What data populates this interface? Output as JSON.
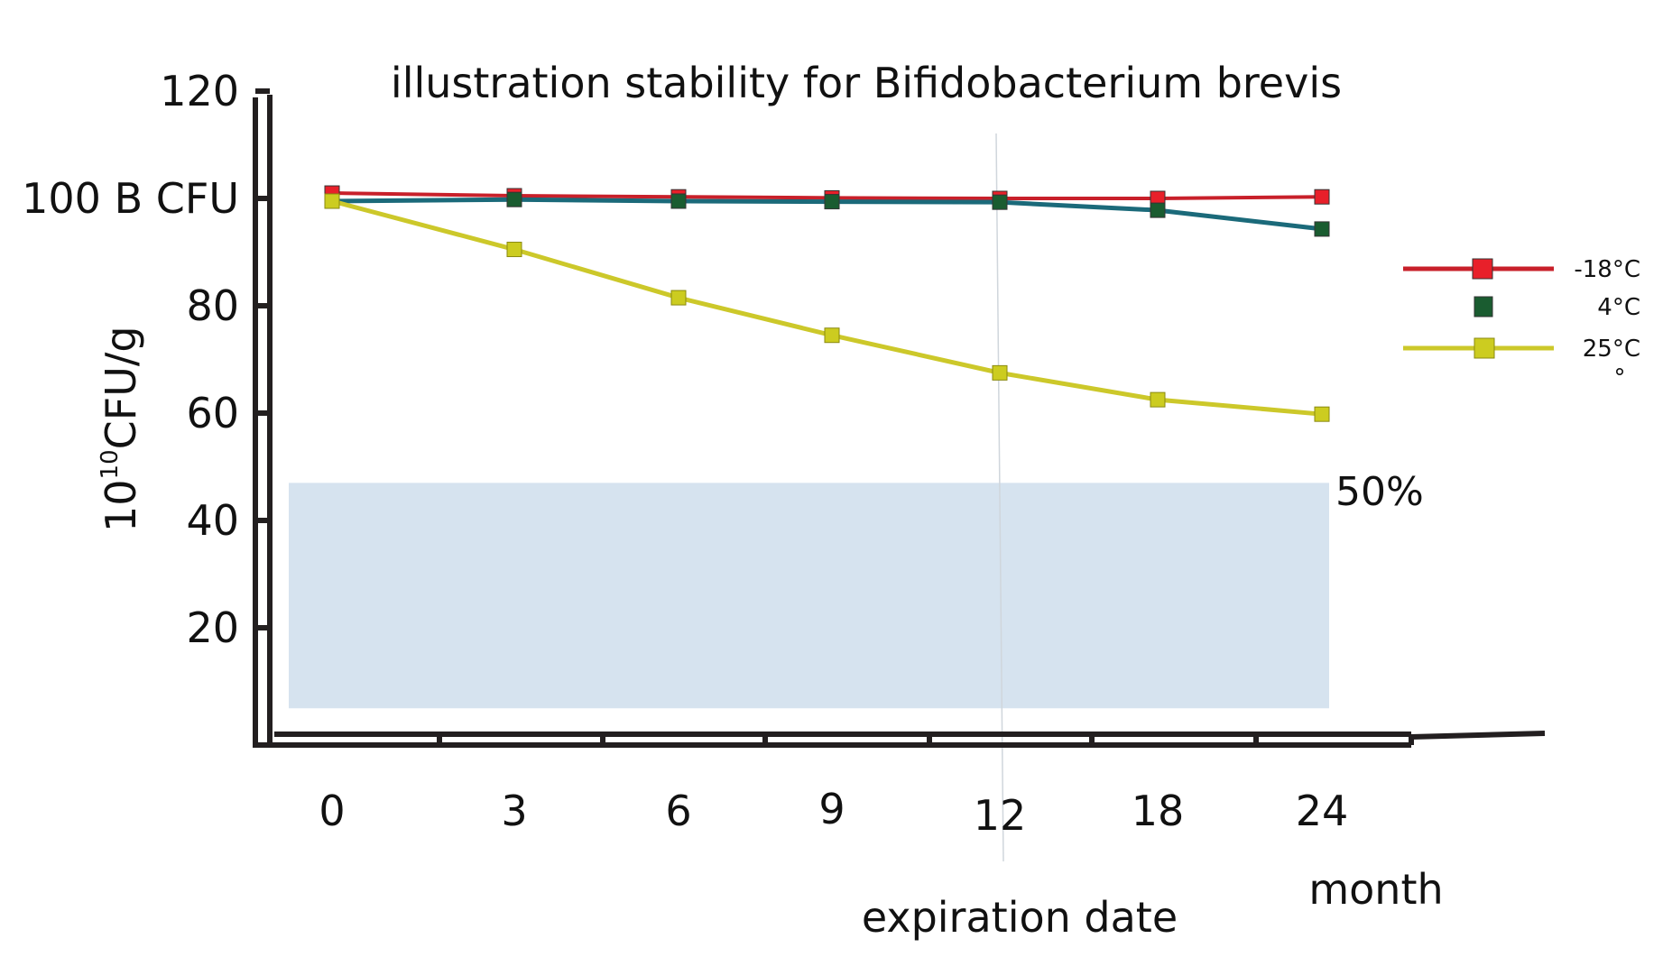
{
  "chart_data": {
    "type": "line",
    "title": "illustration stability for Bifidobacterium brevis",
    "ylabel_base": "10",
    "ylabel_exp": "10",
    "ylabel_rest": "CFU/g",
    "x_unit_label": "month",
    "categories": [
      "0",
      "3",
      "6",
      "9",
      "12",
      "18",
      "24"
    ],
    "y_ticks": [
      "20",
      "40",
      "60",
      "80",
      "100 B CFU",
      "120"
    ],
    "y_tick_values": [
      20,
      40,
      60,
      80,
      100,
      120
    ],
    "ylim": [
      0,
      120
    ],
    "series": [
      {
        "name": "-18°C",
        "color": "#c8202a",
        "marker_color": "#e8202a",
        "values": [
          101,
          100.5,
          100.3,
          100.1,
          100.0,
          100.0,
          100.3
        ]
      },
      {
        "name": "4°C",
        "color": "#1b6a7a",
        "marker_color": "#1a5c30",
        "values": [
          99.5,
          99.8,
          99.5,
          99.4,
          99.3,
          97.8,
          94.3
        ]
      },
      {
        "name": "25°C",
        "color": "#ccc82a",
        "marker_color": "#cccc20",
        "values": [
          99.5,
          90.5,
          81.5,
          74.5,
          67.5,
          62.5,
          59.8
        ]
      }
    ],
    "threshold_band": {
      "label": "50%",
      "y_from": 5,
      "y_to": 47,
      "color": "#d6e3ef"
    },
    "vline": {
      "x_category": "12",
      "label": "expiration date"
    },
    "legend_extra_symbol": "°",
    "legend_position": "right",
    "grid": false
  }
}
